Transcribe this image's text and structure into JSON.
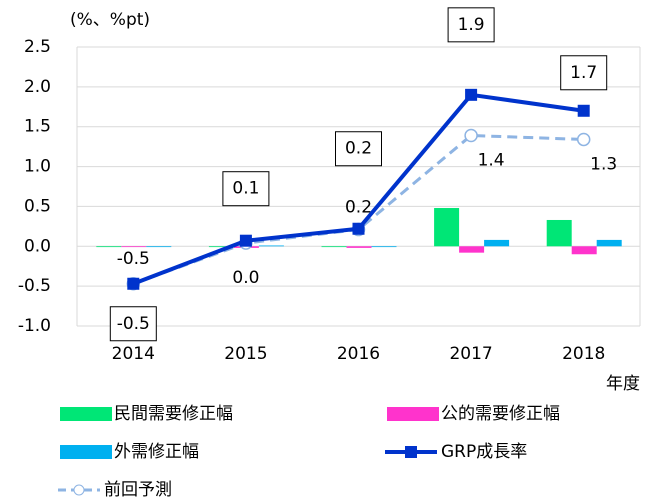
{
  "chart_data": {
    "type": "bar-line",
    "y_axis_label": "(%、%pt)",
    "x_axis_label": "年度",
    "categories": [
      "2014",
      "2015",
      "2016",
      "2017",
      "2018"
    ],
    "ylim": [
      -1,
      2.5
    ],
    "yticks": [
      {
        "value": -1,
        "label": "-1.0"
      },
      -0.5,
      {
        "value": 0,
        "label": "0.0"
      },
      0.5,
      {
        "value": 1,
        "label": "1.0"
      },
      1.5,
      {
        "value": 2,
        "label": "2.0"
      },
      2.5
    ],
    "grid": true,
    "series": [
      {
        "name": "民間需要修正幅",
        "type": "bar",
        "color": "#00e676",
        "values": [
          0,
          0,
          0,
          0.48,
          0.33
        ]
      },
      {
        "name": "公的需要修正幅",
        "type": "bar",
        "color": "#ff33cc",
        "values": [
          0,
          -0.02,
          -0.02,
          -0.08,
          -0.1
        ]
      },
      {
        "name": "外需修正幅",
        "type": "bar",
        "color": "#00b0f0",
        "values": [
          0,
          0.01,
          -0.01,
          0.08,
          0.08
        ]
      },
      {
        "name": "GRP成長率",
        "type": "line",
        "color": "#0033cc",
        "values": [
          -0.47,
          0.07,
          0.22,
          1.9,
          1.7
        ],
        "value_labels": [
          "-0.5",
          "0.1",
          "0.2",
          "1.9",
          "1.7"
        ]
      },
      {
        "name": "前回予測",
        "type": "dashed-line",
        "color": "#8eb4e3",
        "values": [
          -0.47,
          0.04,
          0.21,
          1.39,
          1.34
        ],
        "value_labels": [
          "-0.5",
          "0.0",
          "0.2",
          "1.4",
          "1.3"
        ]
      }
    ]
  }
}
